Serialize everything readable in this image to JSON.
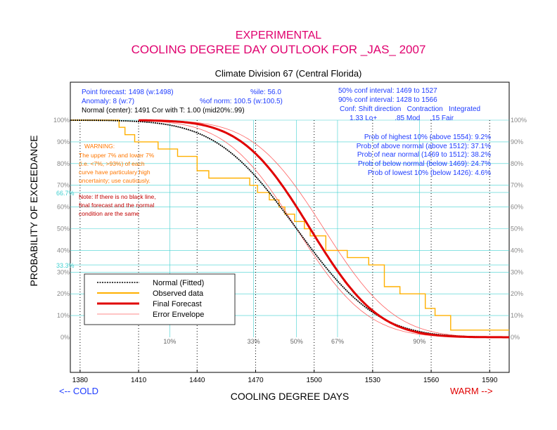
{
  "title_line1": "EXPERIMENTAL",
  "title_line2": "COOLING DEGREE DAY OUTLOOK FOR _JAS_ 2007",
  "subtitle": "Climate Division 67 (Central Florida)",
  "info": {
    "point_forecast": "Point forecast: 1498 (w:1498)",
    "anomaly": "Anomaly: 8 (w:7)",
    "normal": "Normal (center): 1491 Cor with T: 1.00 (mid20%:.99)",
    "ile": "%ile: 56.0",
    "pct_norm": "%of norm: 100.5 (w:100.5)",
    "ci50": "50% conf interval: 1469 to 1527",
    "ci90": "90% conf interval: 1428 to 1566",
    "conf_header": "Conf: Shift direction   Contraction   Integrated",
    "conf_values": "1.33 Lo+         .85 Mod     .15 Fair"
  },
  "probabilities": [
    "Prob of highest 10% (above 1554): 9.2%",
    "Prob of above normal (above 1512): 37.1%",
    "Prob of near normal (1469 to 1512): 38.2%",
    "Prob of below normal (below 1469): 24.7%",
    "Prob of lowest 10% (below 1426): 4.6%"
  ],
  "warning": {
    "heading": "WARNING:",
    "lines": [
      "The upper 7% and lower 7%",
      "(i.e. <7%, >93%) of each",
      "curve have particulary high",
      "uncertainty; use cautiously."
    ]
  },
  "note": {
    "lines": [
      "Note: If there is no black line,",
      "final forecast and  the normal",
      "condition are the same"
    ]
  },
  "bottom_left": "<-- COLD",
  "bottom_right": "WARM -->",
  "colors": {
    "title": "#e0006e",
    "info_blue": "#1e3cff",
    "normal": "#000000",
    "observed": "#ffb000",
    "forecast": "#e00000",
    "envelope": "#ff6060",
    "warning": "#ff7700",
    "note": "#c00000",
    "cyan": "#40d0d0"
  },
  "chart_data": {
    "type": "line",
    "xlabel": "COOLING DEGREE DAYS",
    "ylabel": "PROBABILITY OF EXCEEDANCE",
    "xlim": [
      1375,
      1600
    ],
    "ylim": [
      0,
      100
    ],
    "x_ticks": [
      1380,
      1410,
      1440,
      1470,
      1500,
      1530,
      1560,
      1590
    ],
    "y_ticks": [
      0,
      10,
      20,
      30,
      40,
      50,
      60,
      70,
      80,
      90,
      100
    ],
    "y_tick_labels": [
      "0%",
      "10%",
      "20%",
      "30%",
      "40%",
      "50%",
      "60%",
      "70%",
      "80%",
      "90%",
      "100%"
    ],
    "cyan_hlines": [
      {
        "y": 66.7,
        "label": "66.7%"
      },
      {
        "y": 33.3,
        "label": "33.3%"
      }
    ],
    "percentile_vlines": [
      {
        "x": 1426,
        "label": "10%"
      },
      {
        "x": 1469,
        "label": "33%"
      },
      {
        "x": 1491,
        "label": "50%"
      },
      {
        "x": 1512,
        "label": "67%"
      },
      {
        "x": 1554,
        "label": "90%"
      }
    ],
    "legend": [
      {
        "name": "Normal (Fitted)",
        "style": "normal"
      },
      {
        "name": "Observed data",
        "style": "observed"
      },
      {
        "name": "Final Forecast",
        "style": "forecast"
      },
      {
        "name": "Error Envelope",
        "style": "envelope"
      }
    ],
    "normal_params": {
      "center": 1491,
      "sd": 32.5
    },
    "forecast_params": {
      "center": 1498,
      "sd": 27.5
    },
    "envelope_params": [
      {
        "center": 1491,
        "sd": 28.5
      },
      {
        "center": 1505,
        "sd": 28.5
      }
    ],
    "curve_range_forecast": [
      1410,
      1600
    ],
    "observed_steps": {
      "x": [
        1375,
        1392,
        1400,
        1403,
        1408,
        1410,
        1420,
        1430,
        1440,
        1446,
        1467,
        1471,
        1477,
        1482,
        1485,
        1490,
        1495,
        1498,
        1506,
        1517,
        1528,
        1536,
        1544,
        1557,
        1562,
        1570,
        1585,
        1590,
        1600
      ],
      "y": [
        100,
        100,
        96.7,
        93.3,
        90,
        90,
        86.7,
        83.3,
        76.7,
        73.3,
        70,
        66.7,
        63.3,
        60,
        56.7,
        53.3,
        50,
        46.7,
        40,
        36.7,
        33.3,
        23.3,
        20,
        13.3,
        10,
        3.3,
        3.3,
        3.3,
        3.3
      ]
    }
  }
}
